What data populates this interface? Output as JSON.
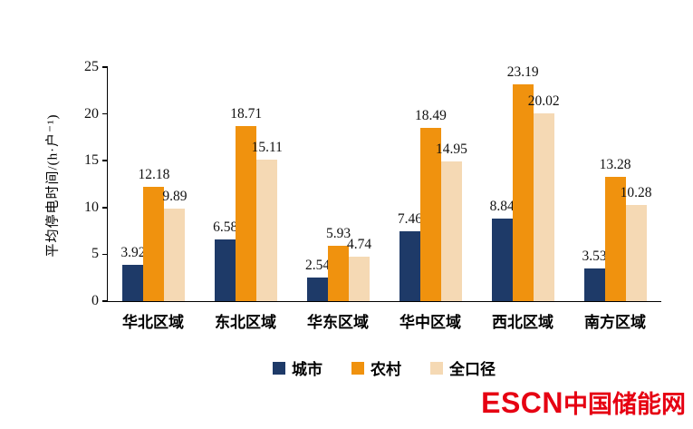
{
  "chart_data": {
    "type": "bar",
    "categories": [
      "华北区域",
      "东北区域",
      "华东区域",
      "华中区域",
      "西北区域",
      "南方区域"
    ],
    "series": [
      {
        "name": "城市",
        "color": "#1e3a68",
        "values": [
          3.92,
          6.58,
          2.54,
          7.46,
          8.84,
          3.53
        ]
      },
      {
        "name": "农村",
        "color": "#f0920e",
        "values": [
          12.18,
          18.71,
          5.93,
          18.49,
          23.19,
          13.28
        ]
      },
      {
        "name": "全口径",
        "color": "#f5d9b4",
        "values": [
          9.89,
          15.11,
          4.74,
          14.95,
          20.02,
          10.28
        ]
      }
    ],
    "title": "",
    "xlabel": "",
    "ylabel": "平均停电时间/(h·户⁻¹)",
    "ylim": [
      0,
      25
    ],
    "yticks": [
      0,
      5,
      10,
      15,
      20,
      25
    ],
    "grid": false,
    "legend_position": "bottom",
    "value_labels": true
  },
  "watermark": {
    "brand": "ESCN",
    "site": "中国储能网"
  }
}
